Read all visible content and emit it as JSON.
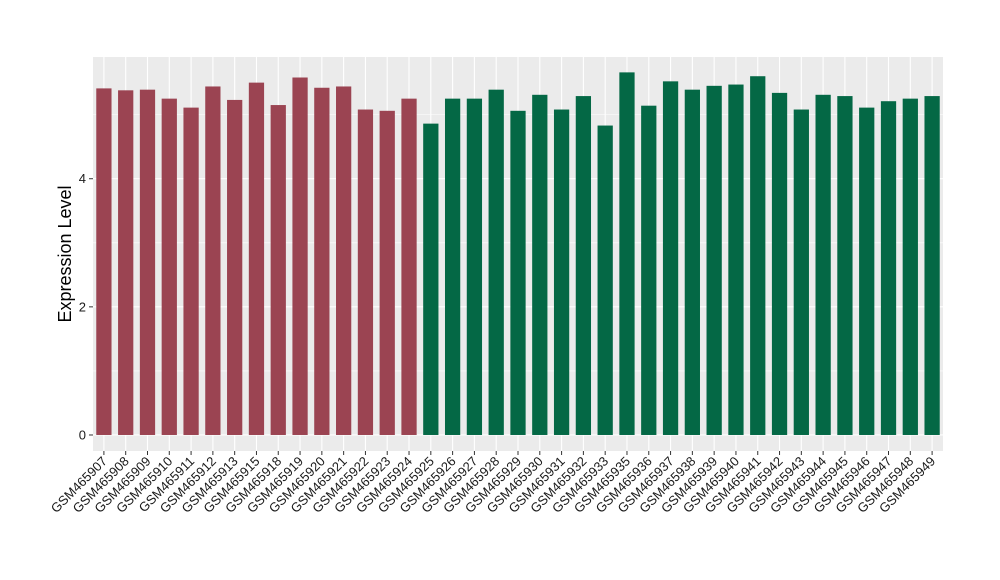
{
  "chart_data": {
    "type": "bar",
    "title": "",
    "xlabel": "",
    "ylabel": "Expression Level",
    "ylim": [
      -0.25,
      5.9
    ],
    "yticks": [
      0,
      2,
      4
    ],
    "grid": true,
    "legend": "none",
    "background": "#EBEBEB",
    "categories": [
      "GSM465907",
      "GSM465908",
      "GSM465909",
      "GSM465910",
      "GSM465911",
      "GSM465912",
      "GSM465913",
      "GSM465915",
      "GSM465918",
      "GSM465919",
      "GSM465920",
      "GSM465921",
      "GSM465922",
      "GSM465923",
      "GSM465924",
      "GSM465925",
      "GSM465926",
      "GSM465927",
      "GSM465928",
      "GSM465929",
      "GSM465930",
      "GSM465931",
      "GSM465932",
      "GSM465933",
      "GSM465935",
      "GSM465936",
      "GSM465937",
      "GSM465938",
      "GSM465939",
      "GSM465940",
      "GSM465941",
      "GSM465942",
      "GSM465943",
      "GSM465944",
      "GSM465945",
      "GSM465946",
      "GSM465947",
      "GSM465948",
      "GSM465949"
    ],
    "values": [
      5.41,
      5.38,
      5.39,
      5.25,
      5.11,
      5.44,
      5.23,
      5.5,
      5.15,
      5.58,
      5.42,
      5.44,
      5.08,
      5.06,
      5.25,
      4.86,
      5.25,
      5.25,
      5.39,
      5.06,
      5.31,
      5.08,
      5.29,
      4.83,
      5.66,
      5.14,
      5.52,
      5.39,
      5.45,
      5.47,
      5.6,
      5.34,
      5.08,
      5.31,
      5.29,
      5.11,
      5.21,
      5.25,
      5.29
    ],
    "bar_colors": [
      "#9B4452",
      "#9B4452",
      "#9B4452",
      "#9B4452",
      "#9B4452",
      "#9B4452",
      "#9B4452",
      "#9B4452",
      "#9B4452",
      "#9B4452",
      "#9B4452",
      "#9B4452",
      "#9B4452",
      "#9B4452",
      "#9B4452",
      "#046845",
      "#046845",
      "#046845",
      "#046845",
      "#046845",
      "#046845",
      "#046845",
      "#046845",
      "#046845",
      "#046845",
      "#046845",
      "#046845",
      "#046845",
      "#046845",
      "#046845",
      "#046845",
      "#046845",
      "#046845",
      "#046845",
      "#046845",
      "#046845",
      "#046845",
      "#046845",
      "#046845"
    ]
  }
}
